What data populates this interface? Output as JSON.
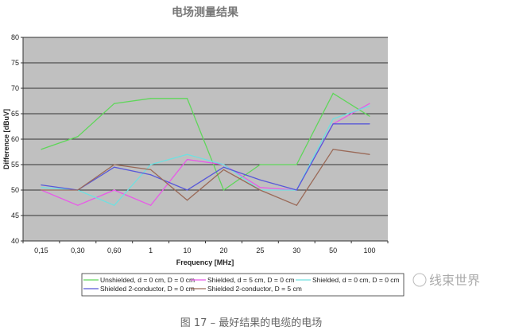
{
  "chart_data": {
    "type": "line",
    "title": "电场测量结果",
    "xlabel": "Frequency [MHz]",
    "ylabel": "Difference [dBuV]",
    "categories": [
      "0,15",
      "0,30",
      "0,60",
      "1",
      "10",
      "20",
      "25",
      "30",
      "50",
      "100"
    ],
    "ylim": [
      40,
      80
    ],
    "yticks": [
      40,
      45,
      50,
      55,
      60,
      65,
      70,
      75,
      80
    ],
    "grid": true,
    "legend_position": "bottom",
    "series": [
      {
        "name": "Unshielded, d = 0 cm, D = 0 cm",
        "color": "#5fd65a",
        "values": [
          58,
          60.5,
          67,
          68,
          68,
          50,
          55,
          55,
          69,
          64.5
        ]
      },
      {
        "name": "Shielded, d = 5 cm, D = 0 cm",
        "color": "#e85ae8",
        "values": [
          50,
          47,
          50,
          47,
          56,
          55,
          50.5,
          50,
          63,
          67
        ]
      },
      {
        "name": "Shielded, d = 0 cm, D = 0 cm",
        "color": "#6fe0e0",
        "values": [
          50.5,
          50,
          47,
          55,
          57,
          55,
          50,
          50,
          64,
          66.5
        ]
      },
      {
        "name": "Shielded 2-conductor, D = 0 cm",
        "color": "#5858d8",
        "values": [
          51,
          50,
          54.5,
          53,
          50,
          54.5,
          52,
          50,
          63,
          63
        ]
      },
      {
        "name": "Shielded 2-conductor, D = 5 cm",
        "color": "#9a6a58",
        "values": [
          50,
          50,
          55,
          54,
          48,
          54,
          50,
          47,
          58,
          57
        ]
      }
    ]
  },
  "watermark": "线束世界",
  "caption": "图 17 – 最好结果的电缆的电场"
}
